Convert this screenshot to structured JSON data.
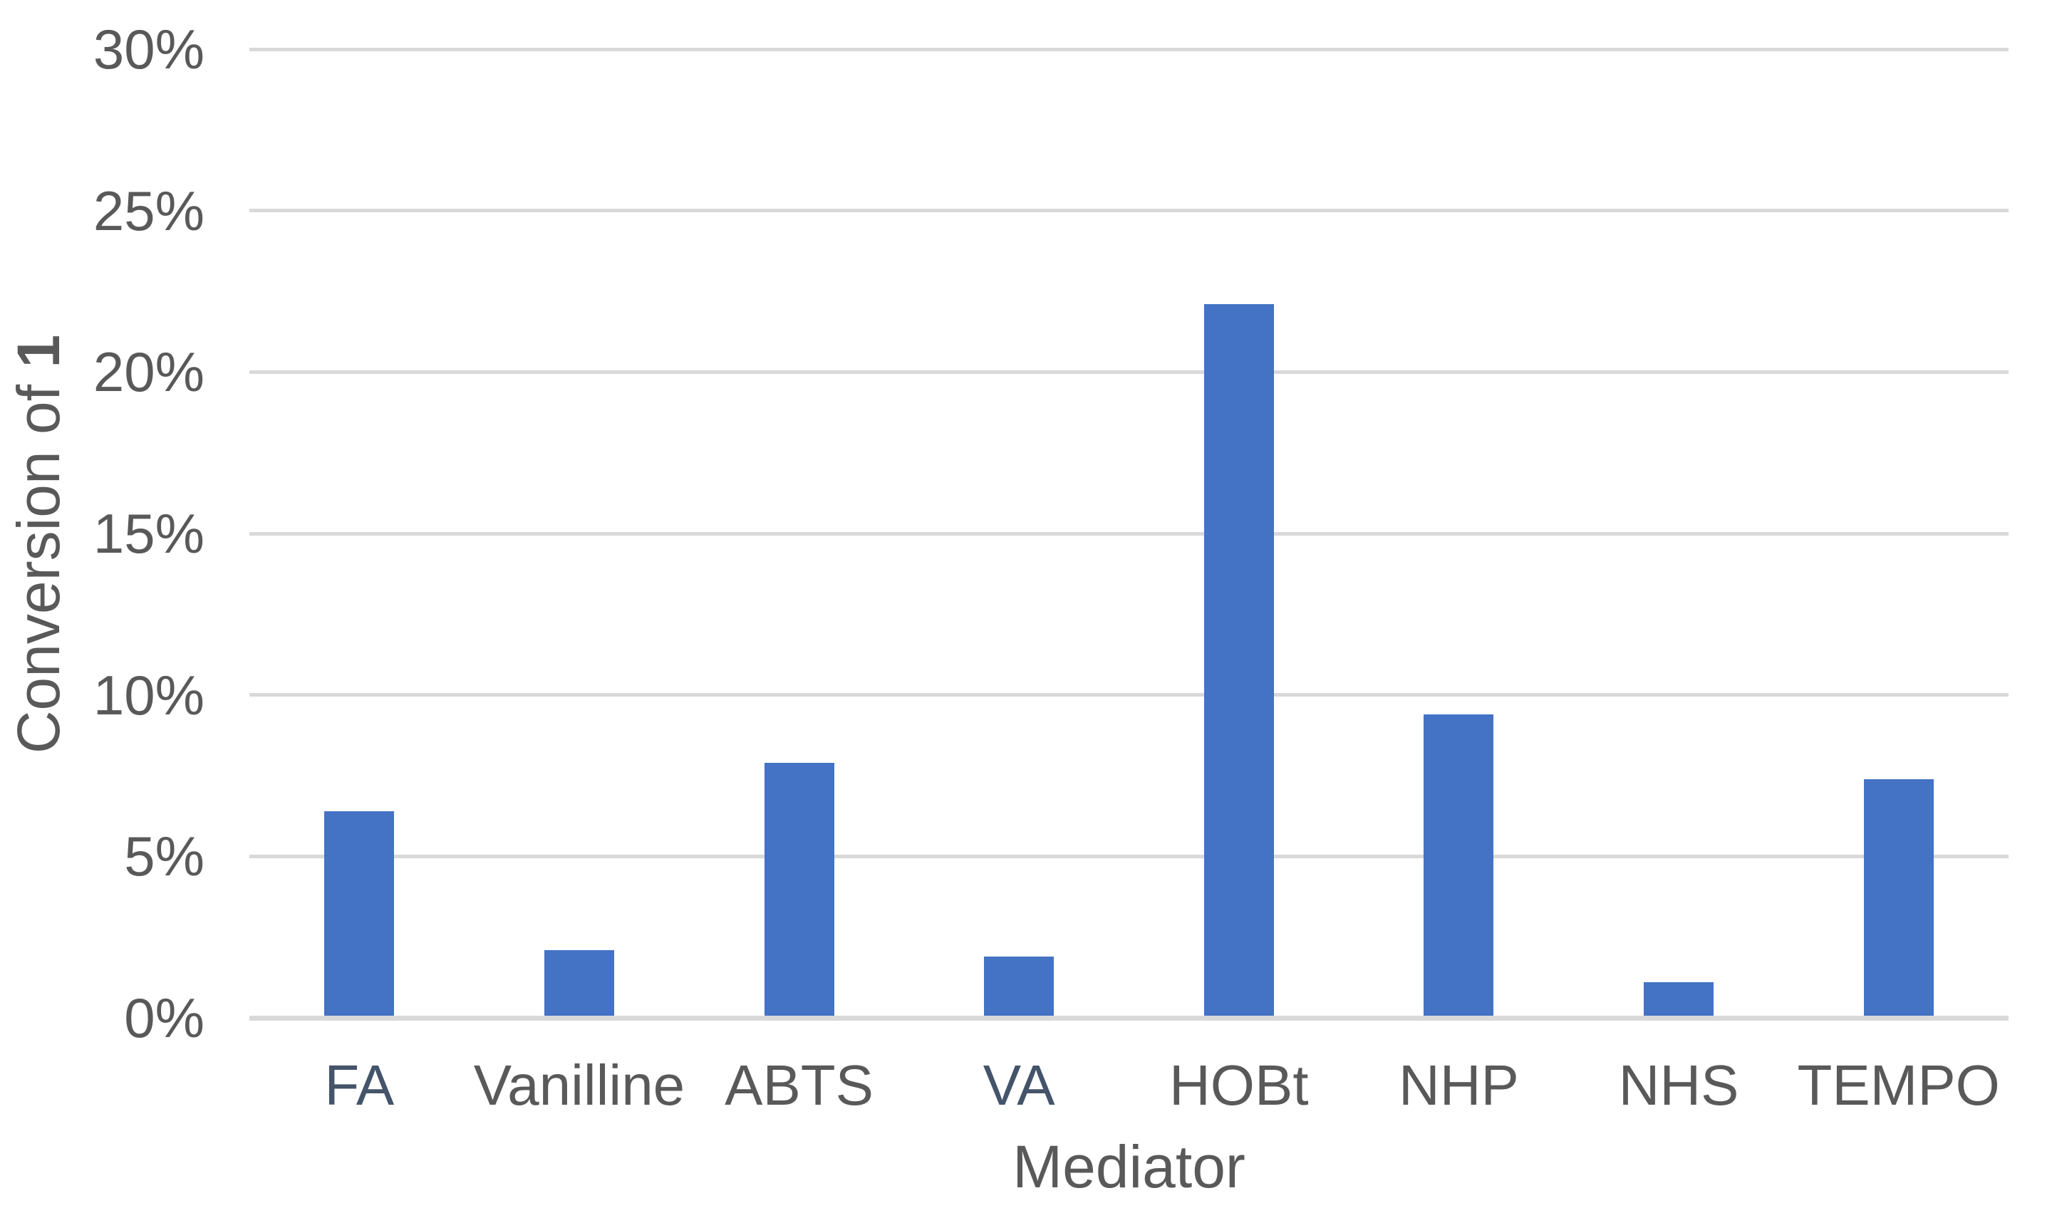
{
  "chart_data": {
    "type": "bar",
    "categories": [
      "FA",
      "Vanilline",
      "ABTS",
      "VA",
      "HOBt",
      "NHP",
      "NHS",
      "TEMPO"
    ],
    "values": [
      6.4,
      2.1,
      7.9,
      1.9,
      22.1,
      9.4,
      1.1,
      7.4
    ],
    "value_unit": "%",
    "title": "",
    "xlabel": "Mediator",
    "ylabel_prefix": "Conversion of ",
    "ylabel_bold": "1",
    "ylim": [
      0,
      30
    ],
    "ytick_step": 5,
    "ytick_labels": [
      "0%",
      "5%",
      "10%",
      "15%",
      "20%",
      "25%",
      "30%"
    ],
    "grid": true,
    "legend": false,
    "highlighted_categories": [
      "FA",
      "VA"
    ]
  },
  "colors": {
    "bar": "#4472C4",
    "gridline": "#D9D9D9",
    "axis_line": "#D9D9D9",
    "tick_label": "#595959",
    "highlight_label": "#44546A",
    "background": "#FFFFFF"
  }
}
